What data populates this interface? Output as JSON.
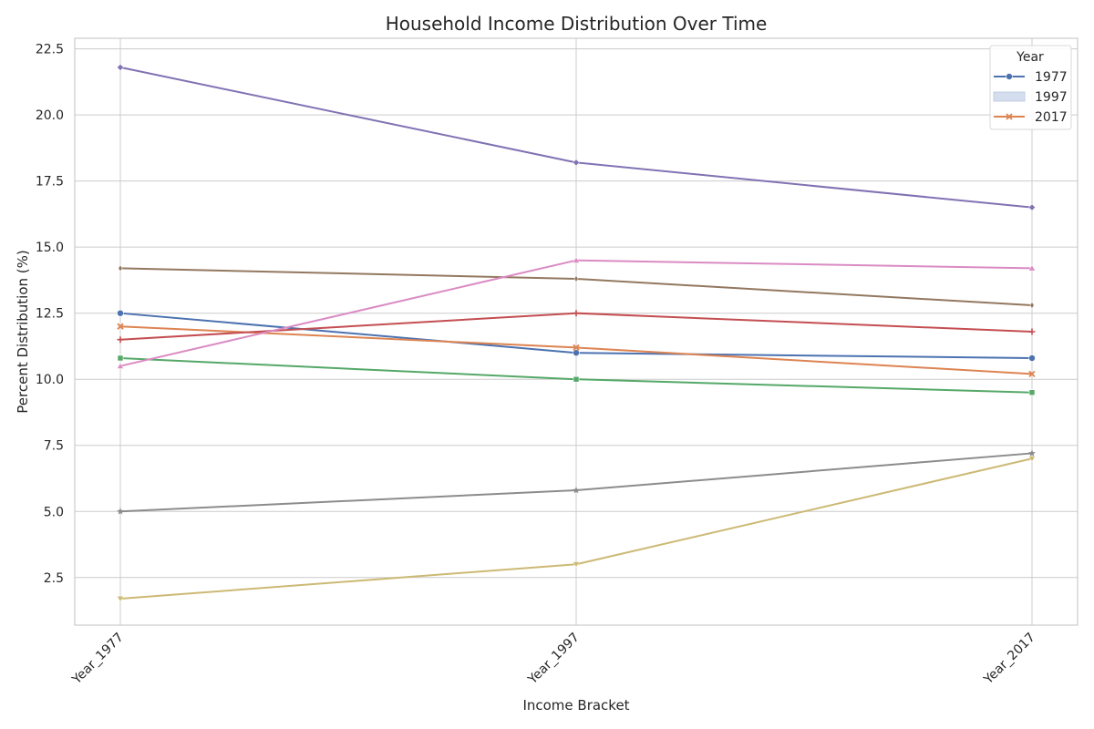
{
  "chart_data": {
    "type": "line",
    "title": "Household Income Distribution Over Time",
    "xlabel": "Income Bracket",
    "ylabel": "Percent Distribution (%)",
    "categories": [
      "Year_1977",
      "Year_1997",
      "Year_2017"
    ],
    "ylim": [
      0.7,
      22.9
    ],
    "yticks": [
      "2.5",
      "5.0",
      "7.5",
      "10.0",
      "12.5",
      "15.0",
      "17.5",
      "20.0",
      "22.5"
    ],
    "grid": true,
    "legend": {
      "title": "Year",
      "placement": "top-right",
      "entries": [
        {
          "label": "1977",
          "color": "#4c72b0",
          "kind": "line-marker"
        },
        {
          "label": "1997",
          "color": "#c7d3e8",
          "kind": "band"
        },
        {
          "label": "2017",
          "color": "#dd8452",
          "kind": "line-marker"
        }
      ]
    },
    "series": [
      {
        "color": "#4c72b0",
        "marker": "circle",
        "values": [
          12.5,
          11.0,
          10.8
        ]
      },
      {
        "color": "#dd8452",
        "marker": "x",
        "values": [
          12.0,
          11.2,
          10.2
        ]
      },
      {
        "color": "#55a868",
        "marker": "square",
        "values": [
          10.8,
          10.0,
          9.5
        ]
      },
      {
        "color": "#c44e52",
        "marker": "plus",
        "values": [
          11.5,
          12.5,
          11.8
        ]
      },
      {
        "color": "#8172b3",
        "marker": "diamond",
        "values": [
          21.8,
          18.2,
          16.5
        ]
      },
      {
        "color": "#937860",
        "marker": "thin-diamond",
        "values": [
          14.2,
          13.8,
          12.8
        ]
      },
      {
        "color": "#da8bc3",
        "marker": "triangle-up",
        "values": [
          10.5,
          14.5,
          14.2
        ]
      },
      {
        "color": "#8c8c8c",
        "marker": "star",
        "values": [
          5.0,
          5.8,
          7.2
        ]
      },
      {
        "color": "#ccb974",
        "marker": "triangle-down",
        "values": [
          1.7,
          3.0,
          7.0
        ]
      }
    ]
  }
}
